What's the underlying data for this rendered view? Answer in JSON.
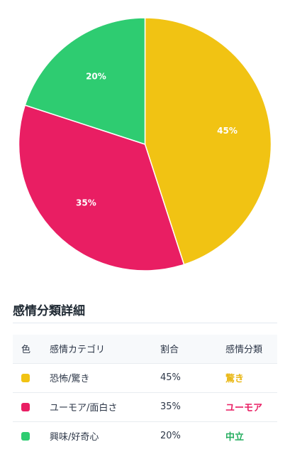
{
  "chart_data": {
    "type": "pie",
    "categories": [
      "恐怖/驚き",
      "ユーモア/面白さ",
      "興味/好奇心"
    ],
    "values": [
      45,
      35,
      20
    ],
    "value_labels": [
      "45%",
      "35%",
      "20%"
    ],
    "colors": [
      "#f1c313",
      "#e91e63",
      "#2ecc71"
    ],
    "title": "",
    "start": "top, clockwise"
  },
  "table": {
    "title": "感情分類詳細",
    "headers": [
      "色",
      "感情カテゴリ",
      "割合",
      "感情分類"
    ],
    "rows": [
      {
        "color": "#f1c313",
        "category": "恐怖/驚き",
        "percent": "45%",
        "classification": "驚き",
        "class_color": "#e9b713"
      },
      {
        "color": "#e91e63",
        "category": "ユーモア/面白さ",
        "percent": "35%",
        "classification": "ユーモア",
        "class_color": "#e91e63"
      },
      {
        "color": "#2ecc71",
        "category": "興味/好奇心",
        "percent": "20%",
        "classification": "中立",
        "class_color": "#27ae60"
      }
    ]
  }
}
